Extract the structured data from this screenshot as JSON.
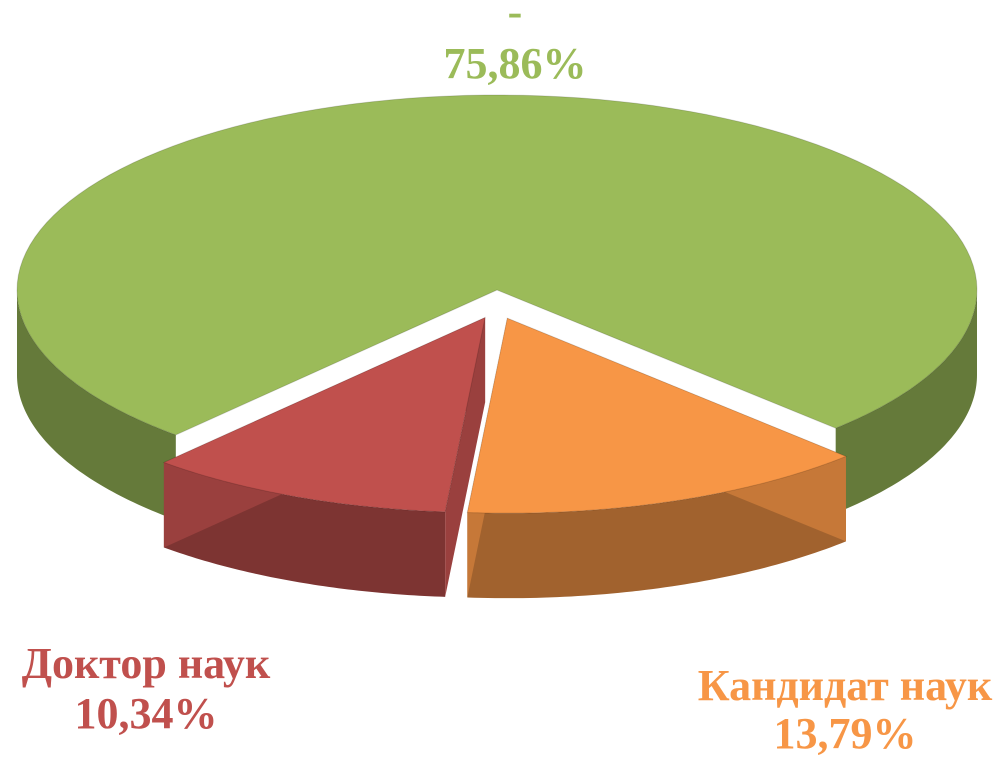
{
  "chart_data": {
    "type": "pie",
    "categories": [
      "-",
      "Кандидат наук",
      "Доктор наук"
    ],
    "values": [
      75.86,
      13.79,
      10.34
    ],
    "value_labels": [
      "75,86%",
      "13,79%",
      "10,34%"
    ],
    "colors": [
      "#9bbb59",
      "#f79646",
      "#c0504d"
    ]
  }
}
